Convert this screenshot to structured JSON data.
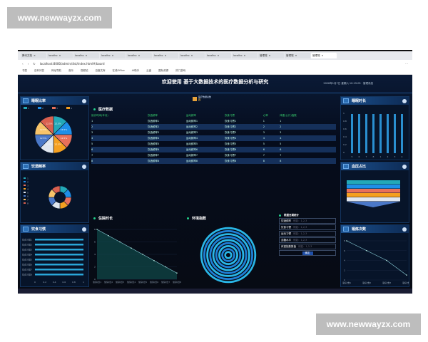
{
  "watermark": "www.newwayzx.com",
  "browser": {
    "tabs": [
      "腾讯文档",
      "localho",
      "localho",
      "localho",
      "localho",
      "localho",
      "localho",
      "localho",
      "localho",
      "管理端",
      "管理端",
      "管理端"
    ],
    "url": "localhost:8080/admin/dist/index.html#/board",
    "bookmarks": [
      "书签",
      "百科问答",
      "网址导航",
      "音乐",
      "视频站",
      "百度文库",
      "在线Office",
      "AI助手",
      "云盘",
      "图标资源",
      "热门游戏"
    ]
  },
  "header": {
    "title": "欢迎使用 基于大数据技术的医疗数据分析与研究",
    "datetime": "2026年1月7日 星期六 10:19:05 · 管理系统",
    "badge_label": "医疗数据总数",
    "badge_value": "8"
  },
  "left": {
    "p1": "睡眠比率",
    "p2": "饮酒频率",
    "p3": "饮食习惯"
  },
  "right": {
    "p1": "睡眠时长",
    "p2": "血压占比",
    "p3": "锻炼次数"
  },
  "table": {
    "title": "医疗数据",
    "headers": [
      "就诊时间(年月)",
      "饮酒频率",
      "运动频率",
      "饮食习惯",
      "心率",
      "体重(公斤)指数"
    ],
    "rows": [
      [
        "1",
        "饮酒频率1",
        "运动频率1",
        "饮食习惯1",
        "1",
        "1"
      ],
      [
        "2",
        "饮酒频率2",
        "运动频率2",
        "饮食习惯2",
        "2",
        "2"
      ],
      [
        "3",
        "饮酒频率3",
        "运动频率3",
        "饮食习惯3",
        "3",
        "3"
      ],
      [
        "4",
        "饮酒频率4",
        "运动频率4",
        "饮食习惯4",
        "4",
        "4"
      ],
      [
        "5",
        "饮酒频率5",
        "运动频率5",
        "饮食习惯5",
        "5",
        "5"
      ],
      [
        "6",
        "饮酒频率6",
        "运动频率6",
        "饮食习惯6",
        "6",
        "6"
      ],
      [
        "7",
        "饮酒频率7",
        "运动频率7",
        "饮食习惯7",
        "7",
        "7"
      ],
      [
        "8",
        "饮酒频率8",
        "运动频率8",
        "饮食习惯8",
        "8",
        "8"
      ]
    ]
  },
  "center": {
    "area_title": "住院时长",
    "radial_title": "环境指数",
    "form_title": "根据日期统计",
    "form_fields": [
      {
        "label": "饮酒频率",
        "placeholder": "例如：1,2,3"
      },
      {
        "label": "饮食习惯",
        "placeholder": "例如：1,2,3"
      },
      {
        "label": "运动习惯",
        "placeholder": "例如：1,2,3"
      },
      {
        "label": "血糖水平",
        "placeholder": "例如：1,2,3"
      },
      {
        "label": "体重指数数值",
        "placeholder": "例如：1,2,3"
      }
    ],
    "form_button": "确定"
  },
  "colors": {
    "pie": [
      "#23a9b8",
      "#1e8fe8",
      "#e8705a",
      "#f5a020",
      "#dfe6ef",
      "#4a78c8",
      "#f7c46a",
      "#d9604f"
    ],
    "accent": "#22d08a"
  },
  "chart_data": [
    {
      "type": "pie",
      "title": "睡眠比率",
      "categories": [
        "1",
        "2",
        "3",
        "4",
        "5",
        "6",
        "7",
        "8"
      ],
      "values": [
        1,
        1,
        1,
        1,
        1,
        1,
        1,
        1
      ],
      "labels": "12.5%"
    },
    {
      "type": "pie",
      "title": "饮酒频率",
      "categories": [
        "1",
        "2",
        "3",
        "4",
        "5",
        "6",
        "7",
        "8"
      ],
      "values": [
        1,
        1,
        1,
        1,
        1,
        1,
        1,
        1
      ],
      "donut": true,
      "legend": "left"
    },
    {
      "type": "bar",
      "title": "饮食习惯",
      "orientation": "horizontal",
      "categories": [
        "饮食习惯1",
        "饮食习惯2",
        "饮食习惯3",
        "饮食习惯4",
        "饮食习惯5",
        "饮食习惯6",
        "饮食习惯7",
        "饮食习惯8"
      ],
      "values": [
        1,
        1,
        1,
        1,
        1,
        1,
        1,
        1
      ],
      "xticks": [
        "0",
        "0.2",
        "0.4",
        "0.6",
        "0.8",
        "1"
      ]
    },
    {
      "type": "bar",
      "title": "睡眠时长",
      "categories": [
        "5",
        "6",
        "7",
        "8",
        "1",
        "2",
        "3",
        "4"
      ],
      "values": [
        1,
        1,
        1,
        1,
        1,
        1,
        1,
        1
      ],
      "yticks": [
        "0",
        "0.2",
        "0.4",
        "0.6",
        "0.8",
        "1"
      ]
    },
    {
      "type": "area",
      "title": "住院时长",
      "categories": [
        "住院时长1",
        "住院时长2",
        "住院时长3",
        "住院时长4",
        "住院时长5",
        "住院时长6",
        "住院时长7",
        "住院时长8"
      ],
      "values": [
        8,
        7,
        6,
        5,
        4,
        3,
        2,
        1
      ],
      "yticks": [
        "0",
        "2",
        "4",
        "6",
        "8"
      ]
    },
    {
      "type": "line",
      "title": "锻炼次数",
      "categories": [
        "锻炼次数1",
        "锻炼次数2",
        "锻炼次数3",
        "锻炼次数4"
      ],
      "values": [
        8,
        6,
        4,
        1
      ],
      "yticks": [
        "0",
        "2",
        "4",
        "6",
        "8"
      ]
    }
  ]
}
